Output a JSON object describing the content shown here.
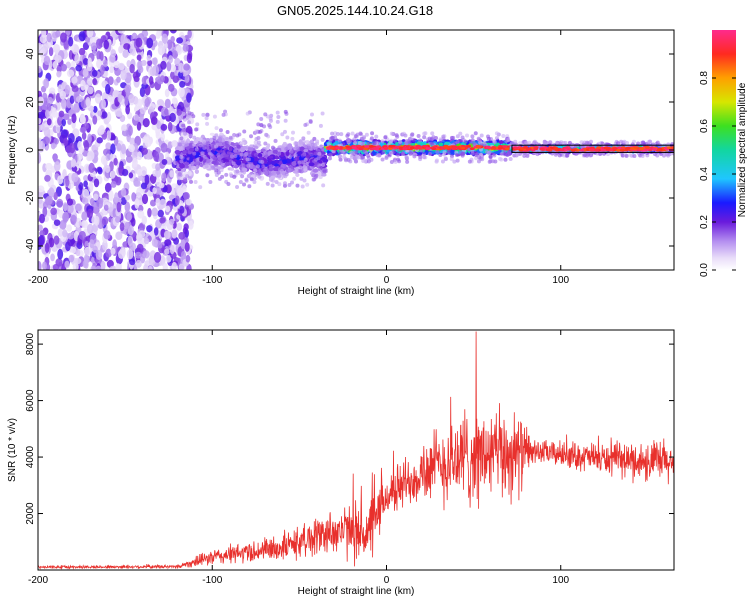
{
  "title": "GN05.2025.144.10.24.G18",
  "chart_data": [
    {
      "type": "heatmap",
      "xlabel": "Height of straight line (km)",
      "ylabel": "Frequency (Hz)",
      "xlim": [
        -200,
        165
      ],
      "ylim": [
        -50,
        50
      ],
      "xticks": [
        "-200",
        "-100",
        "0",
        "100"
      ],
      "yticks": [
        "-40",
        "-20",
        "0",
        "20",
        "40"
      ],
      "colorbar": {
        "label": "Normalized spectral amplitude",
        "range": [
          0,
          1
        ],
        "ticks": [
          "0.0",
          "0.2",
          "0.4",
          "0.6",
          "0.8"
        ]
      },
      "segments": [
        {
          "x_start": -200,
          "x_end": -120,
          "description_level": 0.15,
          "freq_center": 0,
          "freq_spread": 50
        },
        {
          "x_start": -120,
          "x_end": -35,
          "description_level": 0.3,
          "freq_center": 0,
          "freq_spread": 8
        },
        {
          "x_start": -35,
          "x_end": 72,
          "description_level": 0.85,
          "freq_center": 1,
          "freq_spread": 3
        },
        {
          "x_start": 72,
          "x_end": 165,
          "description_level": 0.75,
          "freq_center": 0.5,
          "freq_spread": 1.5
        }
      ],
      "grid": false
    },
    {
      "type": "line",
      "xlabel": "Height of straight line (km)",
      "ylabel": "SNR (10 * v/v)",
      "xlim": [
        -200,
        165
      ],
      "ylim": [
        0,
        8500
      ],
      "xticks": [
        "-200",
        "-100",
        "0",
        "100"
      ],
      "yticks": [
        "2000",
        "4000",
        "6000",
        "8000"
      ],
      "color": "#e8302c",
      "envelope": [
        {
          "x": -200,
          "base": 100,
          "amp": 60
        },
        {
          "x": -120,
          "base": 120,
          "amp": 80
        },
        {
          "x": -100,
          "base": 450,
          "amp": 350
        },
        {
          "x": -60,
          "base": 800,
          "amp": 600
        },
        {
          "x": -30,
          "base": 1400,
          "amp": 1000
        },
        {
          "x": -10,
          "base": 1300,
          "amp": 1500
        },
        {
          "x": 0,
          "base": 2600,
          "amp": 900
        },
        {
          "x": 20,
          "base": 3500,
          "amp": 1400
        },
        {
          "x": 45,
          "base": 4000,
          "amp": 2200
        },
        {
          "x": 75,
          "base": 4100,
          "amp": 1900
        },
        {
          "x": 85,
          "base": 4200,
          "amp": 500
        },
        {
          "x": 130,
          "base": 3900,
          "amp": 700
        },
        {
          "x": 165,
          "base": 3800,
          "amp": 1100
        }
      ],
      "grid": false
    }
  ]
}
